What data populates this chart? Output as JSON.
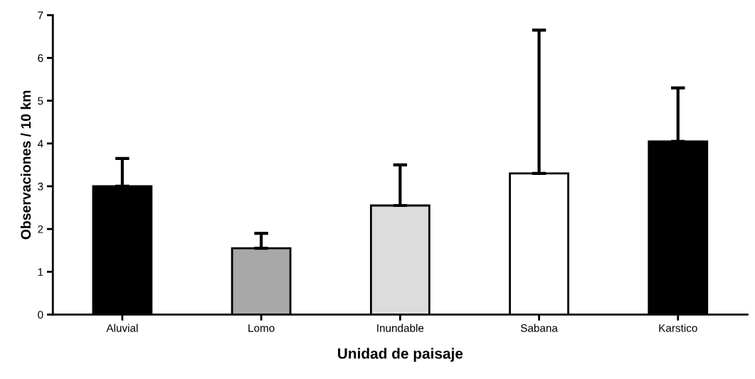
{
  "chart_data": {
    "type": "bar",
    "xlabel": "Unidad de paisaje",
    "ylabel": "Observaciones / 10 km",
    "categories": [
      "Aluvial",
      "Lomo",
      "Inundable",
      "Sabana",
      "Karstico"
    ],
    "values": [
      3.0,
      1.55,
      2.55,
      3.3,
      4.05
    ],
    "colors": [
      "#000000",
      "#a8a8a8",
      "#dcdcdc",
      "#ffffff",
      "#000000"
    ],
    "errors": [
      [
        3.0,
        3.65
      ],
      [
        1.55,
        1.9
      ],
      [
        2.55,
        3.5
      ],
      [
        3.3,
        6.65
      ],
      [
        4.05,
        5.3
      ]
    ],
    "ylim": [
      0,
      7
    ],
    "yticks": [
      0,
      1,
      2,
      3,
      4,
      5,
      6,
      7
    ],
    "grid": false,
    "legend": false
  }
}
